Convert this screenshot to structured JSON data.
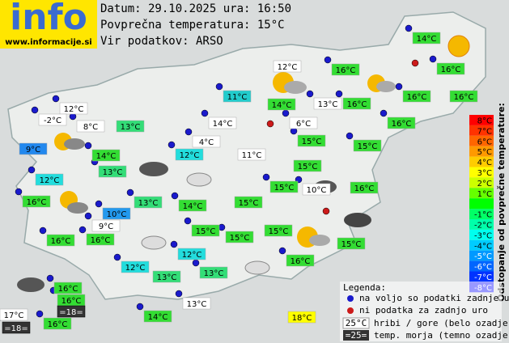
{
  "logo": "info",
  "logo_url": "www.informacije.si",
  "header": {
    "date": "Datum: 29.10.2025 ura: 16:50",
    "average": "Povprečna temperatura: 15°C",
    "source": "Vir podatkov: ARSO"
  },
  "stations": [
    {
      "label": "14°C",
      "color": "#33dd33"
    },
    {
      "label": "12°C",
      "color": "#ffffff"
    },
    {
      "label": "16°C",
      "color": "#33dd33"
    },
    {
      "label": "16°C",
      "color": "#33dd33"
    },
    {
      "label": "11°C",
      "color": "#22cccc"
    },
    {
      "label": "14°C",
      "color": "#33dd33"
    },
    {
      "label": "13°C",
      "color": "#ffffff"
    },
    {
      "label": "16°C",
      "color": "#33dd33"
    },
    {
      "label": "16°C",
      "color": "#33dd33"
    },
    {
      "label": "16°C",
      "color": "#33dd33"
    },
    {
      "label": "12°C",
      "color": "#ffffff"
    },
    {
      "label": "-2°C",
      "color": "#ffffff"
    },
    {
      "label": "8°C",
      "color": "#ffffff"
    },
    {
      "label": "13°C",
      "color": "#33dd77"
    },
    {
      "label": "14°C",
      "color": "#ffffff"
    },
    {
      "label": "6°C",
      "color": "#ffffff"
    },
    {
      "label": "16°C",
      "color": "#33dd33"
    },
    {
      "label": "9°C",
      "color": "#2288ee"
    },
    {
      "label": "4°C",
      "color": "#ffffff"
    },
    {
      "label": "14°C",
      "color": "#33dd33"
    },
    {
      "label": "12°C",
      "color": "#22dddd"
    },
    {
      "label": "11°C",
      "color": "#ffffff"
    },
    {
      "label": "15°C",
      "color": "#33dd33"
    },
    {
      "label": "15°C",
      "color": "#33dd33"
    },
    {
      "label": "13°C",
      "color": "#33dd77"
    },
    {
      "label": "15°C",
      "color": "#33dd33"
    },
    {
      "label": "12°C",
      "color": "#22dddd"
    },
    {
      "label": "15°C",
      "color": "#33dd33"
    },
    {
      "label": "10°C",
      "color": "#ffffff"
    },
    {
      "label": "16°C",
      "color": "#33dd33"
    },
    {
      "label": "16°C",
      "color": "#33dd33"
    },
    {
      "label": "13°C",
      "color": "#33dd77"
    },
    {
      "label": "14°C",
      "color": "#33dd33"
    },
    {
      "label": "15°C",
      "color": "#33dd33"
    },
    {
      "label": "10°C",
      "color": "#2299ee"
    },
    {
      "label": "9°C",
      "color": "#ffffff"
    },
    {
      "label": "15°C",
      "color": "#33dd33"
    },
    {
      "label": "15°C",
      "color": "#33dd33"
    },
    {
      "label": "16°C",
      "color": "#33dd33"
    },
    {
      "label": "16°C",
      "color": "#33dd33"
    },
    {
      "label": "15°C",
      "color": "#33dd33"
    },
    {
      "label": "15°C",
      "color": "#33dd33"
    },
    {
      "label": "12°C",
      "color": "#22dddd"
    },
    {
      "label": "16°C",
      "color": "#33dd33"
    },
    {
      "label": "12°C",
      "color": "#22dddd"
    },
    {
      "label": "13°C",
      "color": "#33dd77"
    },
    {
      "label": "13°C",
      "color": "#33dd77"
    },
    {
      "label": "16°C",
      "color": "#33dd33"
    },
    {
      "label": "16°C",
      "color": "#33dd33"
    },
    {
      "label": "=18=",
      "color": "#333333"
    },
    {
      "label": "13°C",
      "color": "#ffffff"
    },
    {
      "label": "17°C",
      "color": "#ffffff"
    },
    {
      "label": "14°C",
      "color": "#33dd33"
    },
    {
      "label": "18°C",
      "color": "#ffff00"
    },
    {
      "label": "=18=",
      "color": "#333333"
    },
    {
      "label": "16°C",
      "color": "#33dd33"
    }
  ],
  "scale": {
    "title": "Odstopanje od povprečne temperature:",
    "steps": [
      {
        "label": "8°C",
        "color": "#ff0000"
      },
      {
        "label": "7°C",
        "color": "#ff3300"
      },
      {
        "label": "6°C",
        "color": "#ff6600"
      },
      {
        "label": "5°C",
        "color": "#ff9900"
      },
      {
        "label": "4°C",
        "color": "#ffcc00"
      },
      {
        "label": "3°C",
        "color": "#ffff00"
      },
      {
        "label": "2°C",
        "color": "#ccff00"
      },
      {
        "label": "1°C",
        "color": "#66ff00"
      },
      {
        "label": "-1°C",
        "color": "#00ff66"
      },
      {
        "label": "-2°C",
        "color": "#00ffaa"
      },
      {
        "label": "-3°C",
        "color": "#00ffee"
      },
      {
        "label": "-4°C",
        "color": "#00ccff"
      },
      {
        "label": "-5°C",
        "color": "#0099ff"
      },
      {
        "label": "-6°C",
        "color": "#0066ff"
      },
      {
        "label": "-7°C",
        "color": "#0033ff"
      },
      {
        "label": "-8°C",
        "color": "#0000ff"
      }
    ]
  },
  "legend": {
    "title": "Legenda:",
    "available": "na voljo so podatki zadnje ure",
    "missing": "ni podatka za zadnjo uro",
    "mountain_sample": "25°C",
    "mountain": "hribi / gore (belo ozadje)",
    "sea_sample": "=25=",
    "sea": "temp. morja (temno ozadje)"
  }
}
